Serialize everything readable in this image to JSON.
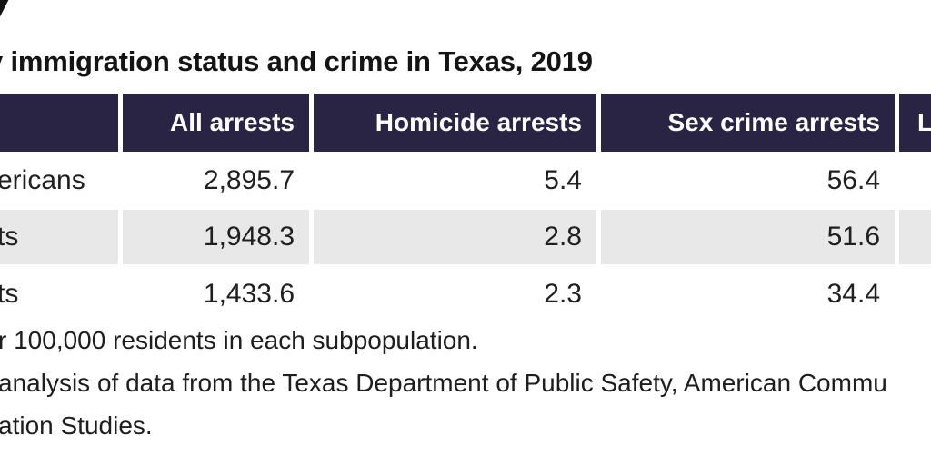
{
  "colors": {
    "header_bg": "#2a2444",
    "header_text": "#ffffff",
    "alt_row_bg": "#e8e8e8",
    "body_text": "#202020"
  },
  "ui": {
    "title": {
      "clipped_prefix_and_text": "y immigration status and crime in Texas, 2019"
    },
    "table": {
      "header": {
        "col0": "",
        "col1": "All arrests",
        "col2": "Homicide arrests",
        "col3": "Sex crime arrests",
        "col4_clipped": "L"
      },
      "rows": [
        {
          "label_clipped": "ericans",
          "v1": "2,895.7",
          "v2": "5.4",
          "v3": "56.4",
          "v4": ""
        },
        {
          "label_clipped": "ts",
          "v1": "1,948.3",
          "v2": "2.8",
          "v3": "51.6",
          "v4": ""
        },
        {
          "label_clipped": "ts",
          "v1": "1,433.6",
          "v2": "2.3",
          "v3": "34.4",
          "v4": ""
        }
      ]
    },
    "notes": {
      "line1_clipped": "r 100,000 residents in each subpopulation.",
      "line2_clipped": "analysis of data from the Texas Department of Public Safety, American Commu",
      "line3_clipped": "ation Studies."
    }
  },
  "chart_data": {
    "type": "table",
    "title": "immigration status and crime in Texas, 2019 (title clipped at left edge of crop)",
    "columns": [
      "",
      "All arrests",
      "Homicide arrests",
      "Sex crime arrests",
      "L (clipped at right edge)"
    ],
    "rows": [
      {
        "label": "ericans (clipped at left edge)",
        "all_arrests": 2895.7,
        "homicide_arrests": 5.4,
        "sex_crime_arrests": 56.4
      },
      {
        "label": "ts (clipped at left edge)",
        "all_arrests": 1948.3,
        "homicide_arrests": 2.8,
        "sex_crime_arrests": 51.6
      },
      {
        "label": "ts (clipped at left edge)",
        "all_arrests": 1433.6,
        "homicide_arrests": 2.3,
        "sex_crime_arrests": 34.4
      }
    ],
    "notes": [
      "r 100,000 residents in each subpopulation. (clipped)",
      "analysis of data from the Texas Department of Public Safety, American Commu (clipped)",
      "ation Studies. (clipped)"
    ],
    "layout": "striped table, dark indigo header row, numbers right-aligned, zebra rows white/#e8e8e8"
  }
}
